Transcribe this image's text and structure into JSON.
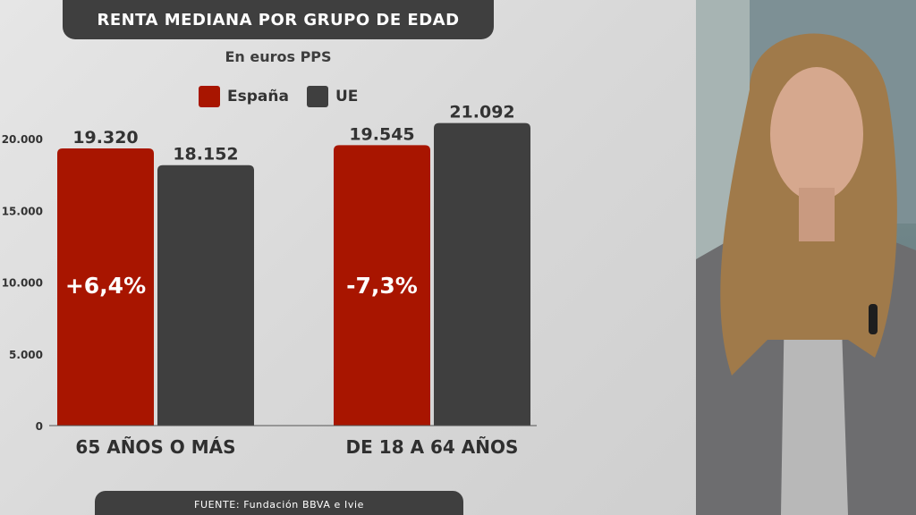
{
  "chart_data": {
    "type": "bar",
    "title": "RENTA MEDIANA POR GRUPO DE EDAD",
    "subtitle": "En euros PPS",
    "categories": [
      "65 AÑOS O MÁS",
      "DE 18 A 64 AÑOS"
    ],
    "series": [
      {
        "name": "España",
        "color": "#a81500",
        "values": [
          19320,
          19545
        ],
        "value_labels": [
          "19.320",
          "19.545"
        ]
      },
      {
        "name": "UE",
        "color": "#3f3f3f",
        "values": [
          18152,
          21092
        ],
        "value_labels": [
          "18.152",
          "21.092"
        ]
      }
    ],
    "annotations": [
      "+6,4%",
      "-7,3%"
    ],
    "yticks": [
      0,
      5000,
      10000,
      15000,
      20000
    ],
    "ytick_labels": [
      "0",
      "5.000",
      "10.000",
      "15.000",
      "20.000"
    ],
    "ylim": [
      0,
      22000
    ],
    "legend_position": "top",
    "grid": false
  },
  "source_text": "FUENTE: Fundación BBVA e Ivie",
  "colors": {
    "spain": "#a81500",
    "eu": "#3f3f3f",
    "banner": "#3f3f3f"
  }
}
